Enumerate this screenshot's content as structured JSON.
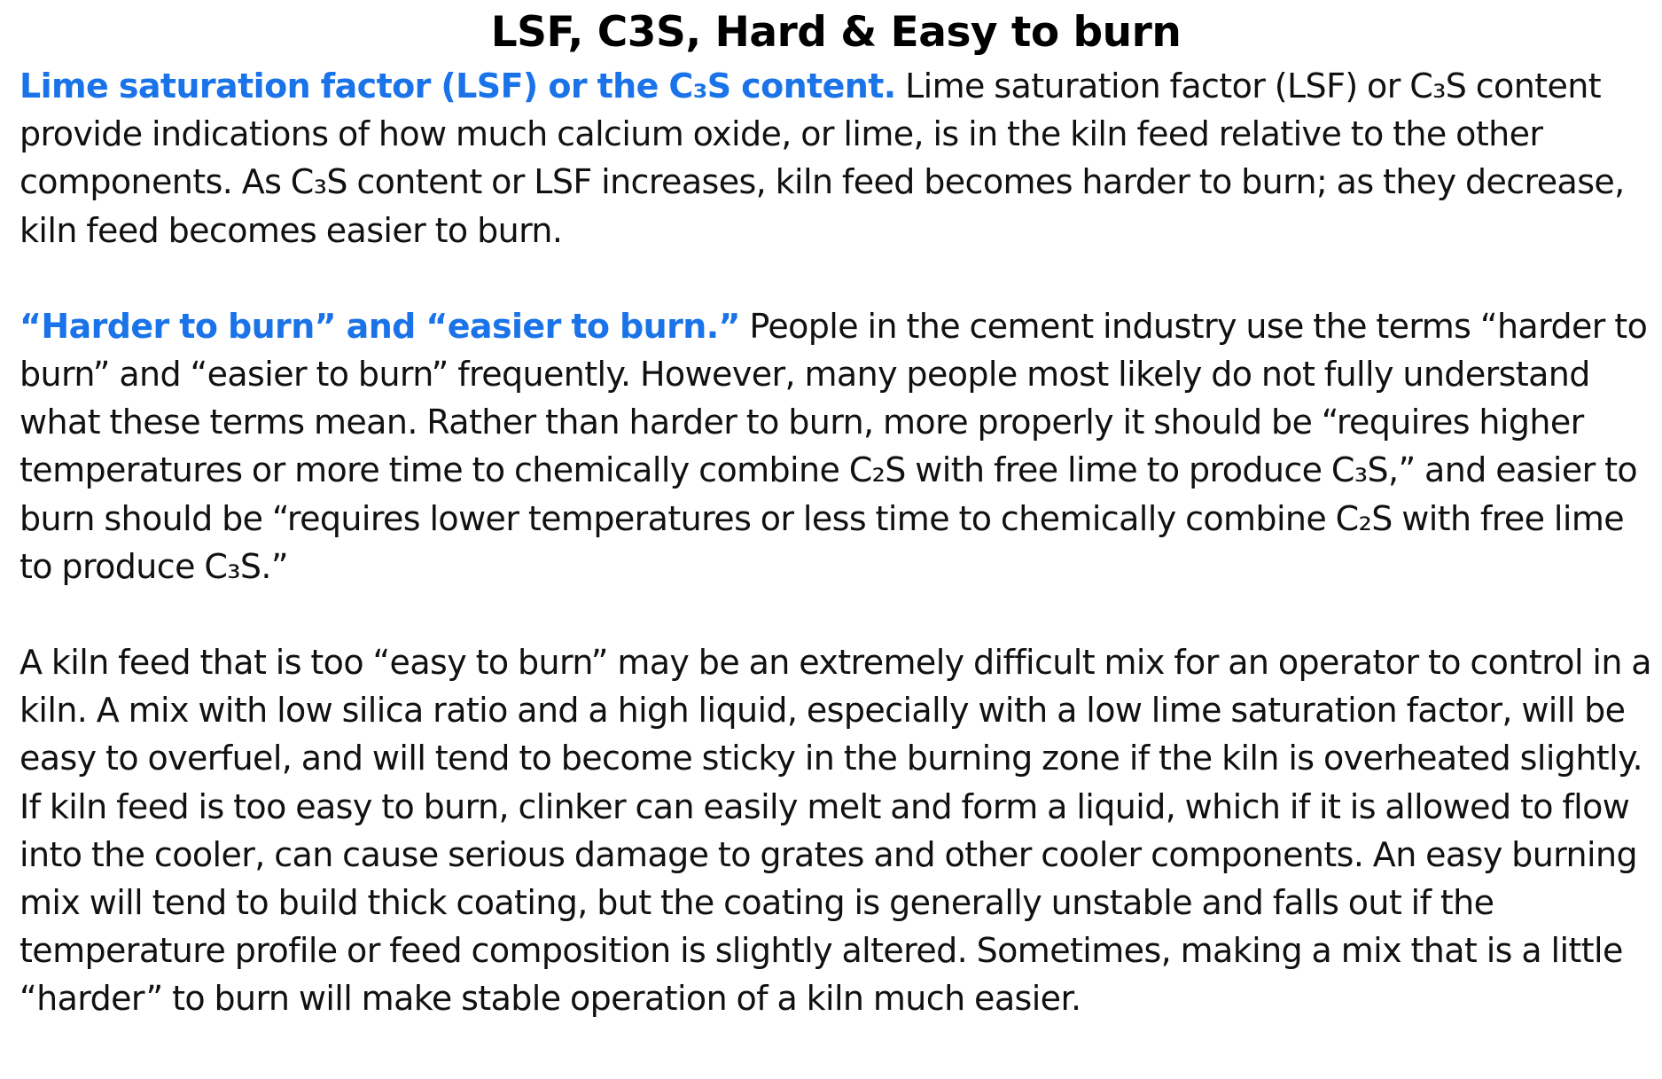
{
  "title": "LSF, C3S, Hard & Easy to burn",
  "accent_color": "#1a73e8",
  "paragraphs": [
    {
      "lead": "Lime saturation factor (LSF) or the C₃S content.",
      "body": " Lime saturation factor (LSF) or C₃S content provide indications of how much calcium oxide, or lime, is in the kiln feed relative to the other components. As C₃S content or LSF increases, kiln feed becomes harder to burn; as they decrease, kiln feed becomes easier to burn."
    },
    {
      "lead": "“Harder to burn” and “easier to burn.”",
      "body": " People in the cement industry use the terms “harder to burn” and “easier to burn” frequently. However, many people most likely do not fully understand what these terms mean. Rather than harder to burn, more properly it should be “requires higher temperatures or more time to chemically combine C₂S with free lime to produce C₃S,” and easier to burn should be “requires lower temperatures or less time to chemically combine C₂S with free lime to produce C₃S.”"
    },
    {
      "body": "A kiln feed that is too “easy to burn” may be an extremely difficult mix for an operator to control in a kiln. A mix with low silica ratio and a high liquid, especially with a low lime saturation factor, will be easy to overfuel, and will tend to become sticky in the burning zone if the kiln is overheated slightly. If kiln feed is too easy to burn, clinker can easily melt and form a liquid, which if it is allowed to flow into the cooler, can cause serious damage to grates and other cooler components. An easy burning mix will tend to build thick coating, but the coating is generally unstable and falls out if the temperature profile or feed composition is slightly altered. Sometimes, making a mix that is a little “harder” to burn will make stable operation of a kiln much easier."
    }
  ]
}
